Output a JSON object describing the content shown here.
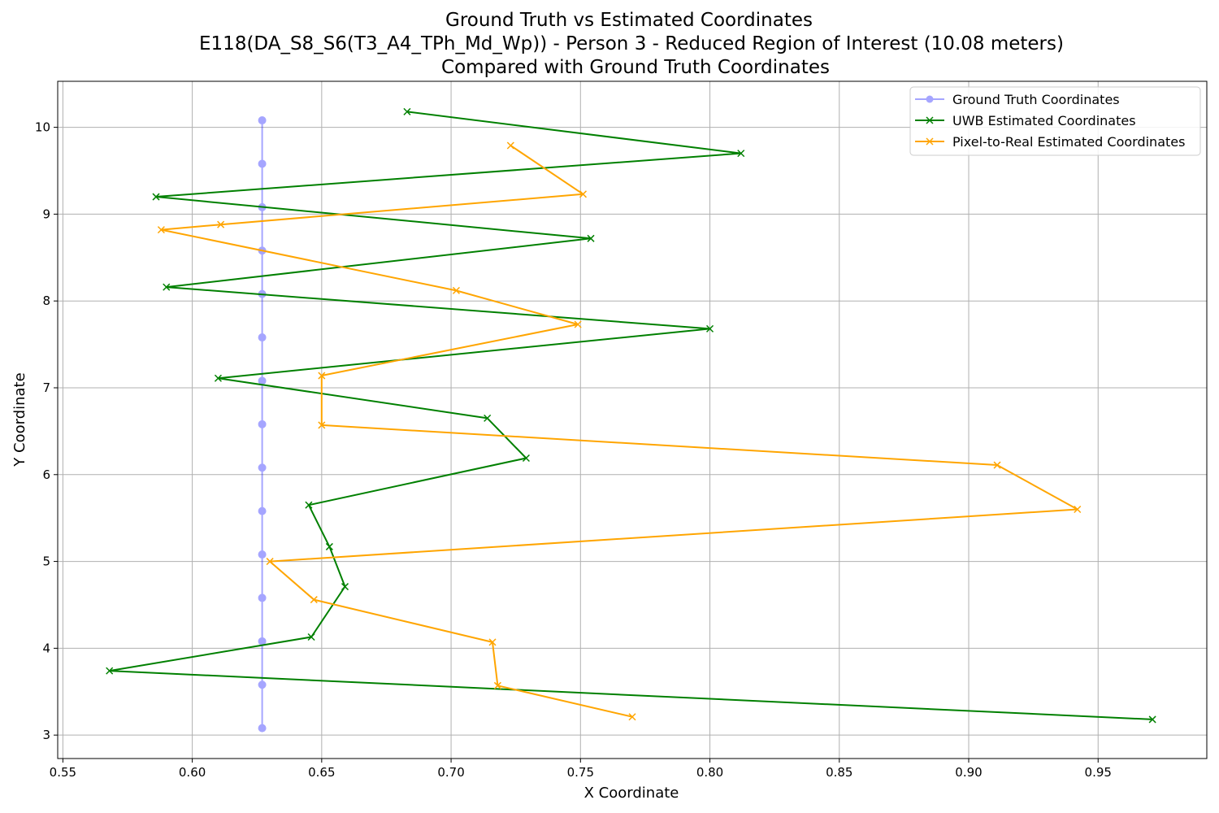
{
  "chart_data": {
    "type": "line",
    "title_lines": [
      "Ground Truth vs Estimated Coordinates",
      "E118(DA_S8_S6(T3_A4_TPh_Md_Wp)) - Person 3 - Reduced Region of Interest (10.08 meters)",
      "Compared with Ground Truth Coordinates"
    ],
    "xlabel": "X Coordinate",
    "ylabel": "Y Coordinate",
    "xlim": [
      0.548,
      0.992
    ],
    "ylim": [
      2.73,
      10.53
    ],
    "xticks": [
      0.55,
      0.6,
      0.65,
      0.7,
      0.75,
      0.8,
      0.85,
      0.9,
      0.95
    ],
    "xtick_labels": [
      "0.55",
      "0.60",
      "0.65",
      "0.70",
      "0.75",
      "0.80",
      "0.85",
      "0.90",
      "0.95"
    ],
    "yticks": [
      3,
      4,
      5,
      6,
      7,
      8,
      9,
      10
    ],
    "ytick_labels": [
      "3",
      "4",
      "5",
      "6",
      "7",
      "8",
      "9",
      "10"
    ],
    "grid": true,
    "legend_position": "top-right",
    "series": [
      {
        "name": "Ground Truth Coordinates",
        "color": "#0000ff",
        "marker": "circle",
        "alpha": 0.35,
        "x": [
          0.627,
          0.627,
          0.627,
          0.627,
          0.627,
          0.627,
          0.627,
          0.627,
          0.627,
          0.627,
          0.627,
          0.627,
          0.627,
          0.627,
          0.627
        ],
        "y": [
          10.08,
          9.58,
          9.08,
          8.58,
          8.08,
          7.58,
          7.08,
          6.58,
          6.08,
          5.58,
          5.08,
          4.58,
          4.08,
          3.58,
          3.08
        ]
      },
      {
        "name": "UWB Estimated Coordinates",
        "color": "#008000",
        "marker": "x",
        "alpha": 1,
        "x": [
          0.683,
          0.812,
          0.586,
          0.754,
          0.59,
          0.8,
          0.61,
          0.714,
          0.729,
          0.645,
          0.653,
          0.659,
          0.646,
          0.568,
          0.971
        ],
        "y": [
          10.18,
          9.7,
          9.2,
          8.72,
          8.16,
          7.68,
          7.11,
          6.65,
          6.19,
          5.65,
          5.17,
          4.71,
          4.13,
          3.74,
          3.18
        ]
      },
      {
        "name": "Pixel-to-Real Estimated Coordinates",
        "color": "#ffa500",
        "marker": "x",
        "alpha": 1,
        "x": [
          0.723,
          0.751,
          0.611,
          0.588,
          0.702,
          0.749,
          0.65,
          0.65,
          0.911,
          0.942,
          0.63,
          0.647,
          0.716,
          0.718,
          0.77
        ],
        "y": [
          9.79,
          9.23,
          8.88,
          8.82,
          8.12,
          7.73,
          7.14,
          6.57,
          6.11,
          5.6,
          5.0,
          4.56,
          4.07,
          3.57,
          3.21
        ]
      }
    ]
  }
}
